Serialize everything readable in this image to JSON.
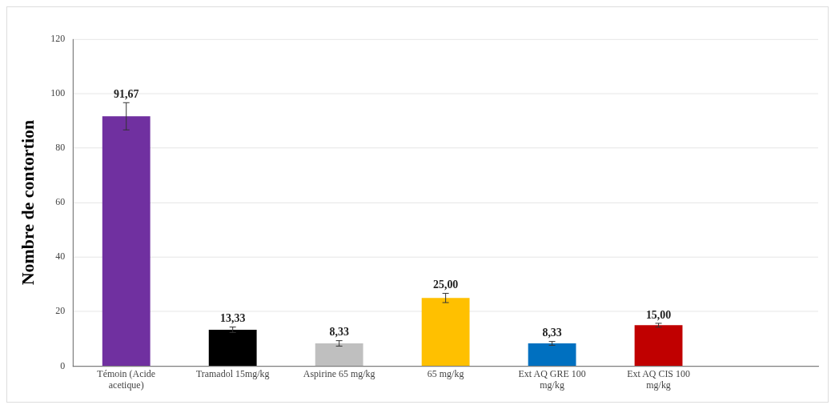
{
  "chart_data": {
    "type": "bar",
    "ylabel": "Nombre de contortion",
    "categories": [
      "Témoin (Acide acetique)",
      "Tramadol 15mg/kg",
      "Aspirine 65 mg/kg",
      "65 mg/kg",
      "Ext AQ GRE 100 mg/kg",
      "Ext AQ CIS 100 mg/kg",
      null
    ],
    "values": [
      91.67,
      13.33,
      8.33,
      25,
      8.33,
      15,
      null
    ],
    "colors": [
      "#7030a0",
      "#000000",
      "#bfbfbf",
      "#ffc000",
      "#0070c0",
      "#c00000",
      "#000000"
    ],
    "errors": [
      5,
      1,
      1,
      1.7,
      0.7,
      0.7,
      null
    ],
    "value_labels": [
      "91,67",
      "13,33",
      "8,33",
      "25,00",
      "8,33",
      "15,00",
      null
    ],
    "ylim": [
      0,
      120
    ],
    "yticks": [
      0,
      20,
      40,
      60,
      80,
      100,
      120
    ],
    "grid": "y"
  }
}
